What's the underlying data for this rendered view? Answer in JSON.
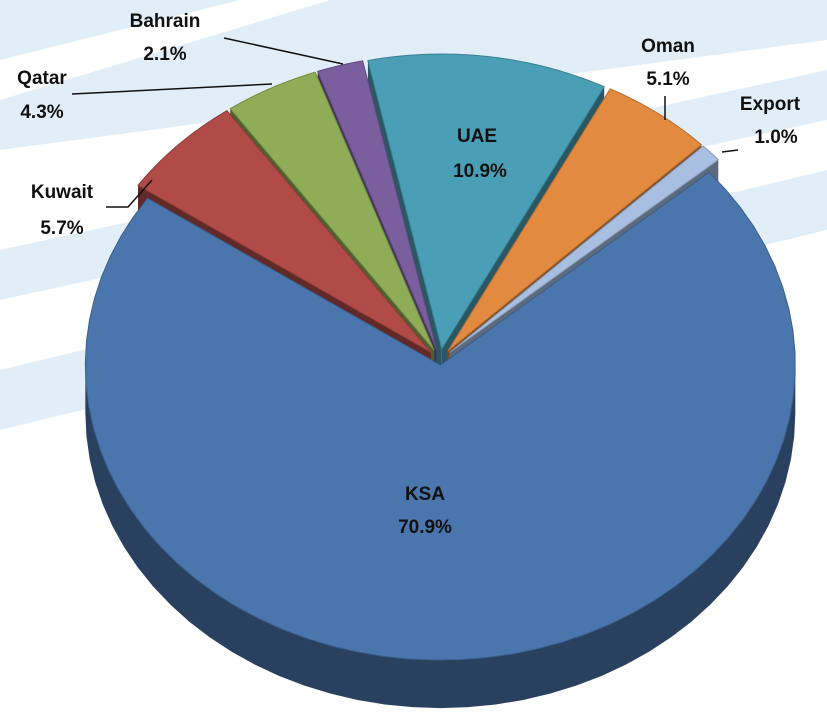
{
  "chart_data": {
    "type": "pie",
    "categories": [
      "UAE",
      "Oman",
      "Export",
      "KSA",
      "Kuwait",
      "Qatar",
      "Bahrain"
    ],
    "values": [
      10.9,
      5.1,
      1.0,
      70.9,
      5.7,
      4.3,
      2.1
    ],
    "value_labels": [
      "10.9%",
      "5.1%",
      "1.0%",
      "70.9%",
      "5.7%",
      "4.3%",
      "2.1%"
    ],
    "colors": [
      "#4a9fb6",
      "#e28a40",
      "#a9bfe2",
      "#4a76ad",
      "#b04b47",
      "#8fad56",
      "#7a5e9e"
    ]
  }
}
